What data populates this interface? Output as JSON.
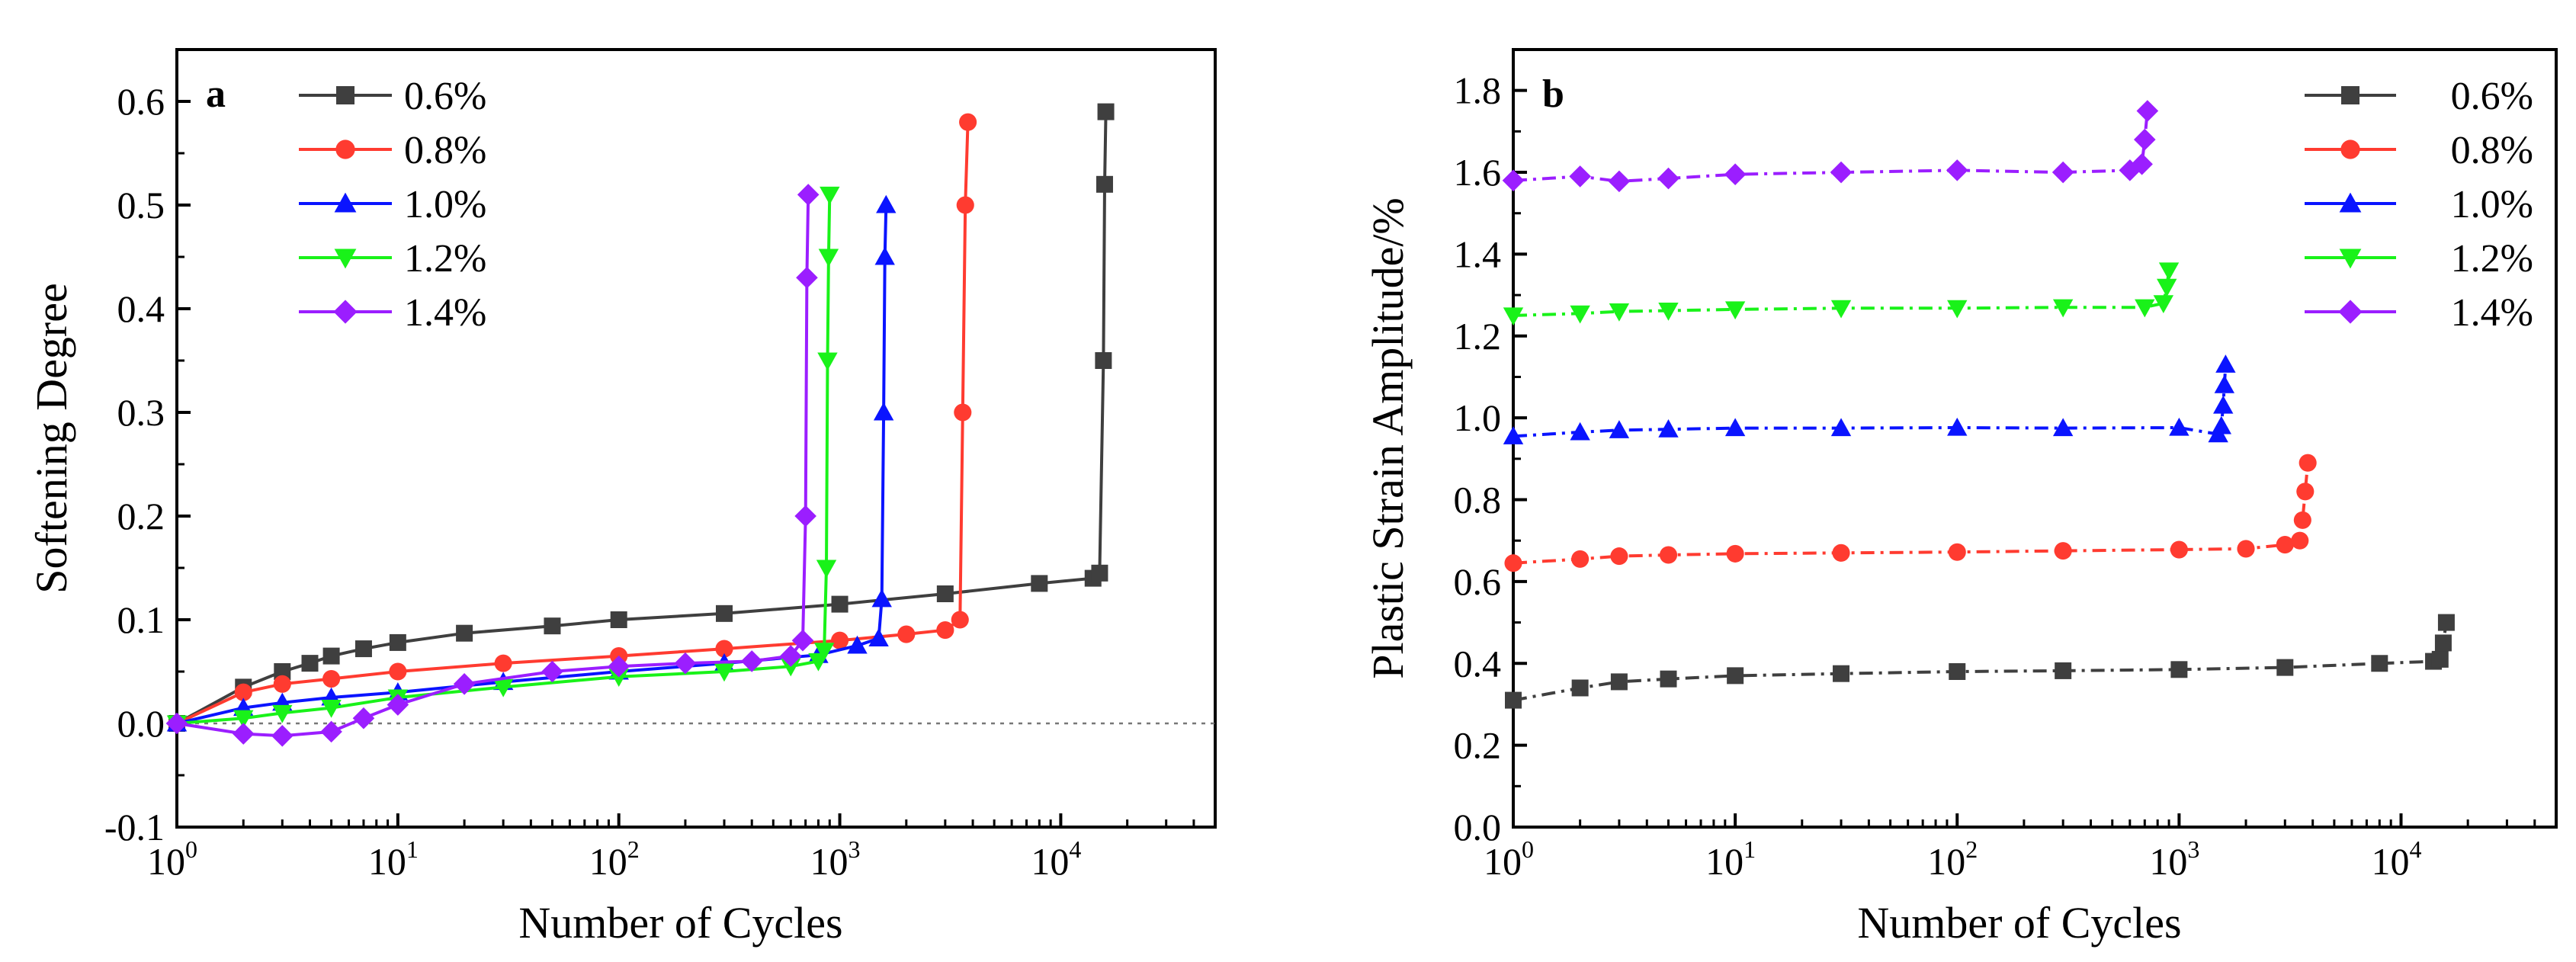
{
  "figure": {
    "description_panels": [
      "a",
      "b"
    ]
  },
  "colors": {
    "0.6%": "#3f3f3f",
    "0.8%": "#ff3b30",
    "1.0%": "#0a14ff",
    "1.2%": "#19f219",
    "1.4%": "#9b1eff"
  },
  "chart_data": [
    {
      "panel": "a",
      "type": "line",
      "x_scale": "log",
      "xlabel": "Number of Cycles",
      "ylabel": "Softening Degree",
      "xlim": [
        1,
        50000
      ],
      "ylim": [
        -0.1,
        0.65
      ],
      "x_ticks": [
        1,
        10,
        100,
        1000,
        10000
      ],
      "x_tick_labels": [
        {
          "base": "10",
          "exp": "0"
        },
        {
          "base": "10",
          "exp": "1"
        },
        {
          "base": "10",
          "exp": "2"
        },
        {
          "base": "10",
          "exp": "3"
        },
        {
          "base": "10",
          "exp": "4"
        }
      ],
      "y_ticks": [
        -0.1,
        0.0,
        0.1,
        0.2,
        0.3,
        0.4,
        0.5,
        0.6
      ],
      "y_tick_labels": [
        "-0.1",
        "0.0",
        "0.1",
        "0.2",
        "0.3",
        "0.4",
        "0.5",
        "0.6"
      ],
      "reference_line": {
        "y": 0,
        "style": "dotted"
      },
      "legend_position": "top-left",
      "series": [
        {
          "name": "0.6%",
          "marker": "square",
          "x": [
            1,
            2,
            3,
            4,
            5,
            7,
            10,
            20,
            50,
            100,
            300,
            1000,
            3000,
            8000,
            14000,
            15000,
            15600,
            15800,
            16000
          ],
          "y": [
            0.0,
            0.035,
            0.05,
            0.058,
            0.065,
            0.072,
            0.078,
            0.087,
            0.094,
            0.1,
            0.106,
            0.115,
            0.125,
            0.135,
            0.14,
            0.145,
            0.35,
            0.52,
            0.59
          ]
        },
        {
          "name": "0.8%",
          "marker": "circle",
          "x": [
            1,
            2,
            3,
            5,
            10,
            30,
            100,
            300,
            1000,
            2000,
            3000,
            3500,
            3600,
            3700,
            3800
          ],
          "y": [
            0.0,
            0.03,
            0.038,
            0.043,
            0.05,
            0.058,
            0.065,
            0.072,
            0.08,
            0.086,
            0.09,
            0.1,
            0.3,
            0.5,
            0.58
          ]
        },
        {
          "name": "1.0%",
          "marker": "triangle-up",
          "x": [
            1,
            2,
            3,
            5,
            10,
            30,
            100,
            300,
            800,
            1200,
            1500,
            1550,
            1580,
            1600,
            1620
          ],
          "y": [
            0.0,
            0.015,
            0.02,
            0.025,
            0.03,
            0.04,
            0.05,
            0.058,
            0.066,
            0.075,
            0.082,
            0.12,
            0.3,
            0.45,
            0.5
          ]
        },
        {
          "name": "1.2%",
          "marker": "triangle-down",
          "x": [
            1,
            2,
            3,
            5,
            10,
            30,
            100,
            300,
            600,
            800,
            850,
            870,
            880,
            890,
            900
          ],
          "y": [
            0.0,
            0.005,
            0.01,
            0.015,
            0.025,
            0.035,
            0.045,
            0.05,
            0.055,
            0.06,
            0.07,
            0.15,
            0.35,
            0.45,
            0.51
          ]
        },
        {
          "name": "1.4%",
          "marker": "diamond",
          "x": [
            1,
            2,
            3,
            5,
            7,
            10,
            20,
            50,
            100,
            200,
            400,
            600,
            680,
            700,
            710,
            720
          ],
          "y": [
            0.0,
            -0.01,
            -0.012,
            -0.008,
            0.005,
            0.018,
            0.038,
            0.05,
            0.055,
            0.058,
            0.06,
            0.065,
            0.08,
            0.2,
            0.43,
            0.51
          ]
        }
      ]
    },
    {
      "panel": "b",
      "type": "line",
      "x_scale": "log",
      "xlabel": "Number of Cycles",
      "ylabel": "Plastic Strain Amplitude/%",
      "xlim": [
        1,
        50000
      ],
      "ylim": [
        0.0,
        1.9
      ],
      "x_ticks": [
        1,
        10,
        100,
        1000,
        10000
      ],
      "x_tick_labels": [
        {
          "base": "10",
          "exp": "0"
        },
        {
          "base": "10",
          "exp": "1"
        },
        {
          "base": "10",
          "exp": "2"
        },
        {
          "base": "10",
          "exp": "3"
        },
        {
          "base": "10",
          "exp": "4"
        }
      ],
      "y_ticks": [
        0.0,
        0.2,
        0.4,
        0.6,
        0.8,
        1.0,
        1.2,
        1.4,
        1.6,
        1.8
      ],
      "y_tick_labels": [
        "0.0",
        "0.2",
        "0.4",
        "0.6",
        "0.8",
        "1.0",
        "1.2",
        "1.4",
        "1.6",
        "1.8"
      ],
      "legend_position": "top-right",
      "series": [
        {
          "name": "0.6%",
          "marker": "square",
          "x": [
            1,
            2,
            3,
            5,
            10,
            30,
            100,
            300,
            1000,
            3000,
            8000,
            14000,
            15000,
            15500,
            16000
          ],
          "y": [
            0.31,
            0.34,
            0.355,
            0.362,
            0.37,
            0.375,
            0.38,
            0.382,
            0.385,
            0.39,
            0.4,
            0.405,
            0.41,
            0.45,
            0.5
          ]
        },
        {
          "name": "0.8%",
          "marker": "circle",
          "x": [
            1,
            2,
            3,
            5,
            10,
            30,
            100,
            300,
            1000,
            2000,
            3000,
            3500,
            3600,
            3700,
            3800
          ],
          "y": [
            0.645,
            0.655,
            0.662,
            0.665,
            0.668,
            0.67,
            0.672,
            0.675,
            0.678,
            0.68,
            0.69,
            0.7,
            0.75,
            0.82,
            0.89
          ]
        },
        {
          "name": "1.0%",
          "marker": "triangle-up",
          "x": [
            1,
            2,
            3,
            5,
            10,
            30,
            100,
            300,
            1000,
            1500,
            1550,
            1580,
            1600,
            1620
          ],
          "y": [
            0.955,
            0.965,
            0.97,
            0.972,
            0.975,
            0.975,
            0.976,
            0.975,
            0.976,
            0.96,
            0.98,
            1.03,
            1.08,
            1.13
          ]
        },
        {
          "name": "1.2%",
          "marker": "triangle-down",
          "x": [
            1,
            2,
            3,
            5,
            10,
            30,
            100,
            300,
            700,
            850,
            880,
            900
          ],
          "y": [
            1.25,
            1.255,
            1.26,
            1.262,
            1.265,
            1.268,
            1.268,
            1.27,
            1.27,
            1.28,
            1.32,
            1.36
          ]
        },
        {
          "name": "1.4%",
          "marker": "diamond",
          "x": [
            1,
            2,
            3,
            5,
            10,
            30,
            100,
            300,
            600,
            680,
            700,
            720
          ],
          "y": [
            1.58,
            1.59,
            1.578,
            1.585,
            1.595,
            1.6,
            1.605,
            1.6,
            1.605,
            1.62,
            1.68,
            1.75
          ]
        }
      ]
    }
  ]
}
